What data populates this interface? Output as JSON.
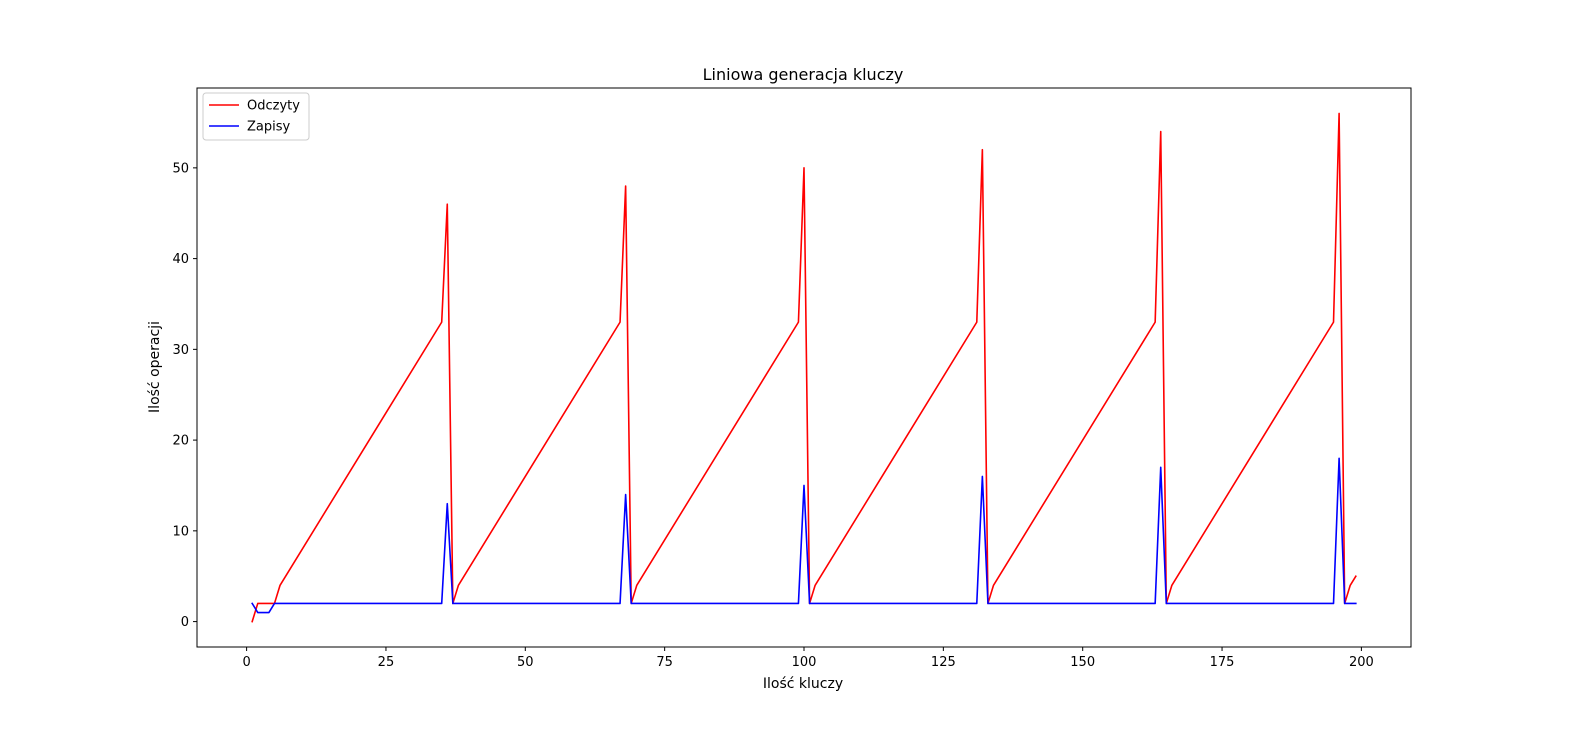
{
  "chart_data": {
    "type": "line",
    "title": "Liniowa generacja kluczy",
    "xlabel": "Ilość kluczy",
    "ylabel": "Ilość operacji",
    "xlim": [
      -8.9,
      208.9
    ],
    "ylim": [
      -2.8,
      58.8
    ],
    "xticks": [
      0,
      25,
      50,
      75,
      100,
      125,
      150,
      175,
      200
    ],
    "yticks": [
      0,
      10,
      20,
      30,
      40,
      50
    ],
    "grid": false,
    "legend_position": "upper-left",
    "series": [
      {
        "name": "Odczyty",
        "color": "#ff0000",
        "x": [
          1,
          2,
          5,
          6,
          35,
          36,
          37,
          38,
          67,
          68,
          69,
          70,
          99,
          100,
          101,
          102,
          131,
          132,
          133,
          134,
          163,
          164,
          165,
          166,
          195,
          196,
          197,
          198,
          199
        ],
        "y": [
          0,
          2,
          2,
          4,
          33,
          46,
          2,
          4,
          33,
          48,
          2,
          4,
          33,
          50,
          2,
          4,
          33,
          52,
          2,
          4,
          33,
          54,
          2,
          4,
          33,
          56,
          2,
          4,
          5
        ]
      },
      {
        "name": "Zapisy",
        "color": "#0000ff",
        "x": [
          1,
          2,
          4,
          5,
          35,
          36,
          37,
          67,
          68,
          69,
          99,
          100,
          101,
          131,
          132,
          133,
          163,
          164,
          165,
          195,
          196,
          197,
          199
        ],
        "y": [
          2,
          1,
          1,
          2,
          2,
          13,
          2,
          2,
          14,
          2,
          2,
          15,
          2,
          2,
          16,
          2,
          2,
          17,
          2,
          2,
          18,
          2,
          2
        ]
      }
    ]
  }
}
